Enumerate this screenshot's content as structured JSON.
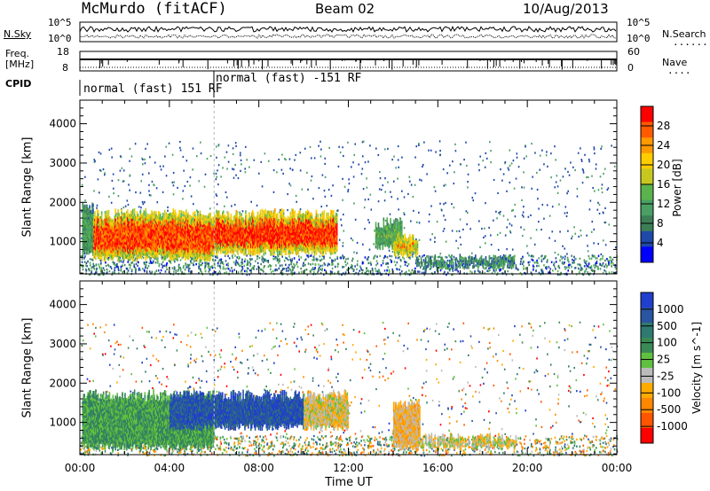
{
  "header": {
    "station": "McMurdo (fitACF)",
    "beam": "Beam 02",
    "date": "10/Aug/2013"
  },
  "side_labels": {
    "n_sky": "N.Sky",
    "n_search": "N.Search",
    "n_search_dots": ".......",
    "freq_line1": "Freq.",
    "freq_line2": "[MHz]",
    "nave": "Nave",
    "nave_dots": "....",
    "cpid": "CPID"
  },
  "noise_ticks": {
    "left_top": "10^5",
    "left_bottom": "10^0",
    "right_top": "10^5",
    "right_bottom": "10^0"
  },
  "freq_ticks": {
    "left_top": "18",
    "left_bottom": "8",
    "right_top": "60",
    "right_bottom": "0"
  },
  "cpid_segments": [
    {
      "label": "normal (fast) 151 RF",
      "start_hour": 0
    },
    {
      "label": "normal (fast) -151 RF",
      "start_hour": 6
    }
  ],
  "colors": {
    "power_scale": [
      "#0000ff",
      "#1f49a8",
      "#3c7f57",
      "#4aa064",
      "#5ab34c",
      "#c7c81f",
      "#ffcc00",
      "#ff9900",
      "#ff5a00",
      "#ff0000"
    ],
    "velocity_scale": [
      "#ff0000",
      "#ff5500",
      "#ff8800",
      "#ffaa00",
      "#bbbbbb",
      "#60c040",
      "#3a8a55",
      "#2f7a70",
      "#2a55a0",
      "#1f3fcc"
    ]
  },
  "chart_data": [
    {
      "type": "heatmap",
      "title": "",
      "xlabel": "Time UT",
      "ylabel": "Slant Range [km]",
      "xlim": [
        0,
        24
      ],
      "ylim": [
        180,
        4600
      ],
      "x_ticks": [
        "00:00",
        "04:00",
        "08:00",
        "12:00",
        "16:00",
        "20:00",
        "00:00"
      ],
      "y_ticks": [
        "1000",
        "2000",
        "3000",
        "4000"
      ],
      "colorbar": {
        "label": "Power [dB]",
        "ticks": [
          "4",
          "8",
          "12",
          "16",
          "20",
          "24",
          "28"
        ],
        "range": [
          0,
          30
        ]
      },
      "regions": [
        {
          "t_start": 0.1,
          "t_end": 0.6,
          "r_low": 600,
          "r_high": 2000,
          "value": 10
        },
        {
          "t_start": 0.6,
          "t_end": 6.0,
          "r_low": 500,
          "r_high": 1800,
          "value": 26
        },
        {
          "t_start": 6.0,
          "t_end": 11.5,
          "r_low": 650,
          "r_high": 1800,
          "value": 27
        },
        {
          "t_start": 13.2,
          "t_end": 14.4,
          "r_low": 800,
          "r_high": 1600,
          "value": 13
        },
        {
          "t_start": 14.0,
          "t_end": 15.1,
          "r_low": 600,
          "r_high": 1200,
          "value": 26
        },
        {
          "t_start": 15.0,
          "t_end": 19.5,
          "r_low": 300,
          "r_high": 650,
          "value": 9
        }
      ]
    },
    {
      "type": "heatmap",
      "title": "",
      "xlabel": "Time UT",
      "ylabel": "Slant Range [km]",
      "xlim": [
        0,
        24
      ],
      "ylim": [
        180,
        4600
      ],
      "x_ticks": [
        "00:00",
        "04:00",
        "08:00",
        "12:00",
        "16:00",
        "20:00",
        "00:00"
      ],
      "y_ticks": [
        "1000",
        "2000",
        "3000",
        "4000"
      ],
      "colorbar": {
        "label": "Velocity [m s^-1]",
        "ticks": [
          "1000",
          "500",
          "100",
          "25",
          "-25",
          "-100",
          "-500",
          "-1000"
        ],
        "range": [
          -1200,
          1200
        ]
      },
      "regions": [
        {
          "t_start": 0.1,
          "t_end": 6.0,
          "r_low": 300,
          "r_high": 1800,
          "value": 300
        },
        {
          "t_start": 4.0,
          "t_end": 10.0,
          "r_low": 800,
          "r_high": 1800,
          "value": 900
        },
        {
          "t_start": 10.0,
          "t_end": 12.0,
          "r_low": 800,
          "r_high": 1800,
          "value": -200
        },
        {
          "t_start": 14.0,
          "t_end": 15.2,
          "r_low": 300,
          "r_high": 1600,
          "value": -300
        },
        {
          "t_start": 15.0,
          "t_end": 19.5,
          "r_low": 300,
          "r_high": 700,
          "value": -150
        }
      ]
    }
  ]
}
